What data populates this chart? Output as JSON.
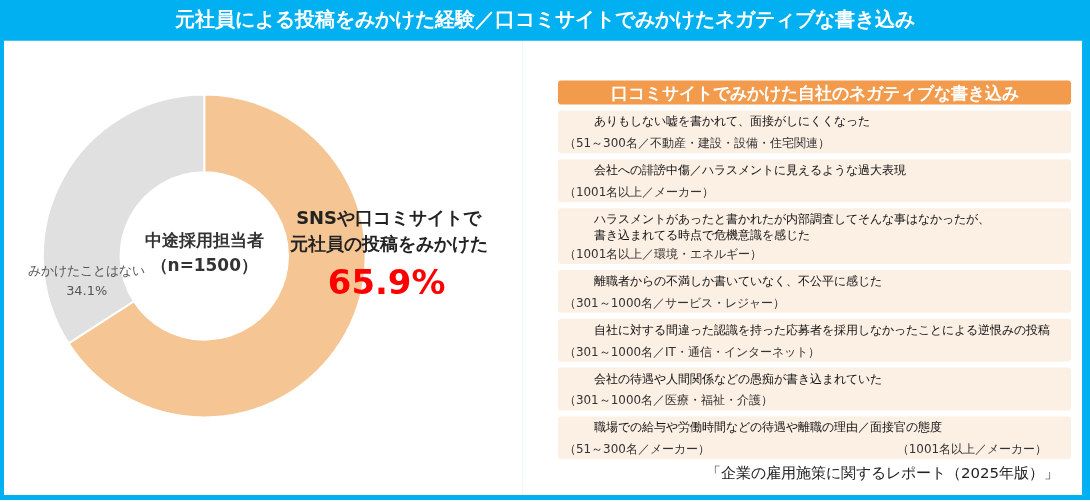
{
  "chart_data": [
    {
      "type": "donut",
      "title": "元社員による投稿をみかけた経験／口コミサイトでみかけたネガティブな書き込み",
      "categories": [
        "SNSや口コミサイトで元社員の投稿をみかけた",
        "みかけたことはない"
      ],
      "values": [
        65.9,
        34.1
      ],
      "colors": [
        "#f5c593",
        "#e0e0e0"
      ],
      "value_labels": [
        "65.9%",
        "34.1%"
      ],
      "annotations": [
        "中途採用担当者（n=1500）"
      ]
    },
    {
      "type": "other",
      "title": "口コミサイトでみかけた自社のネガティブな書き込み",
      "categories": [
        "ありもしない嘘を書かれて、面接がしにくくなった",
        "会社への誹謗中傷／ハラスメントに見えるような過大表現",
        "ハラスメントがあったと書かれたが内部調査してそんな事はなかったが、書き込まれてる時点で危機意識を感じた",
        "離職者からの不満しか書いていなく、不公平に感じた",
        "自社に対する間違った認識を持った応募者を採用しなかったことによる逆恨みの投稿",
        "会社の待遇や人間関係などの愚痴が書き込まれていた",
        "職場での給与や労働時間などの待遇や離職の理由／面接官の態度"
      ],
      "annotations": [
        "（51～300名／不動産・建設・設備・住宅関連）",
        "（1001名以上／メーカー）",
        "（1001名以上／環境・エネルギー）",
        "（301～1000名／サービス・レジャー）",
        "（301～1000名／IT・通信・インターネット）",
        "（301～1000名／医療・福祉・介護）",
        "（51～300名／メーカー）",
        "（1001名以上／メーカー）",
        "「企業の雇用施策に関するレポート（2025年版）」"
      ]
    }
  ]
}
